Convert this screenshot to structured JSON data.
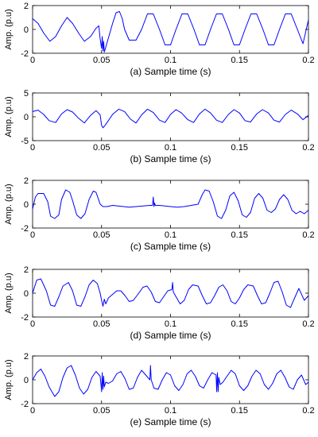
{
  "chart_data": [
    {
      "type": "line",
      "caption": "(a) Sample time (s)",
      "ylabel": "Amp. (p.u)",
      "xlim": [
        0,
        0.2
      ],
      "ylim": [
        -2,
        2
      ],
      "x_ticks": [
        "0",
        "0.05",
        "0.1",
        "0.15",
        "0.2"
      ],
      "y_ticks": [
        "2",
        "0",
        "-2"
      ],
      "series": [
        {
          "color": "#0000ff",
          "x": [
            0,
            0.004,
            0.008,
            0.0125,
            0.0167,
            0.021,
            0.025,
            0.029,
            0.0333,
            0.0375,
            0.042,
            0.046,
            0.048,
            0.049,
            0.05,
            0.0505,
            0.051,
            0.0515,
            0.052,
            0.053,
            0.054,
            0.056,
            0.058,
            0.0605,
            0.063,
            0.065,
            0.0667,
            0.07,
            0.075,
            0.079,
            0.0833,
            0.0875,
            0.092,
            0.096,
            0.1,
            0.104,
            0.1083,
            0.1125,
            0.117,
            0.121,
            0.125,
            0.129,
            0.1333,
            0.1375,
            0.142,
            0.146,
            0.15,
            0.154,
            0.1583,
            0.1625,
            0.167,
            0.171,
            0.175,
            0.179,
            0.1833,
            0.1875,
            0.192,
            0.196,
            0.2
          ],
          "y": [
            0.9,
            0.5,
            -0.3,
            -1.0,
            -0.6,
            0.3,
            1.0,
            0.5,
            -0.3,
            -1.0,
            -0.6,
            0.1,
            0.3,
            -0.8,
            -1.6,
            -0.6,
            -1.8,
            -1.0,
            -1.9,
            -1.5,
            -1.1,
            -0.3,
            0.5,
            1.4,
            1.5,
            0.9,
            0,
            -0.9,
            -0.9,
            0,
            1.3,
            1.3,
            0,
            -1.3,
            -1.3,
            0,
            1.3,
            1.3,
            0,
            -1.3,
            -1.3,
            0,
            1.3,
            1.3,
            0,
            -1.3,
            -1.3,
            0,
            1.3,
            1.3,
            0,
            -1.3,
            -1.3,
            0,
            1.3,
            1.3,
            0,
            -1.2,
            0.8
          ]
        }
      ]
    },
    {
      "type": "line",
      "caption": "(b) Sample time (s)",
      "ylabel": "Amp. (p.u)",
      "xlim": [
        0,
        0.2
      ],
      "ylim": [
        -5,
        5
      ],
      "x_ticks": [
        "0",
        "0.05",
        "0.1",
        "0.15",
        "0.2"
      ],
      "y_ticks": [
        "5",
        "0",
        "-5"
      ],
      "series": [
        {
          "color": "#0000ff",
          "x": [
            0,
            0.004,
            0.008,
            0.012,
            0.0167,
            0.021,
            0.025,
            0.029,
            0.0333,
            0.0375,
            0.042,
            0.046,
            0.049,
            0.05,
            0.051,
            0.052,
            0.054,
            0.058,
            0.0625,
            0.0667,
            0.071,
            0.075,
            0.079,
            0.0833,
            0.0875,
            0.092,
            0.096,
            0.1,
            0.104,
            0.108,
            0.1125,
            0.1167,
            0.121,
            0.125,
            0.129,
            0.1333,
            0.1375,
            0.142,
            0.146,
            0.15,
            0.154,
            0.158,
            0.1625,
            0.1667,
            0.171,
            0.175,
            0.179,
            0.1833,
            0.1875,
            0.192,
            0.196,
            0.2
          ],
          "y": [
            1.1,
            1.4,
            0.5,
            -0.8,
            -1.2,
            0.6,
            1.5,
            1.0,
            -0.3,
            -1.3,
            0.3,
            1.3,
            0.4,
            -1.8,
            -2.3,
            -2.0,
            -1.2,
            0.5,
            1.6,
            1.1,
            -0.5,
            -1.3,
            0.4,
            1.6,
            0.9,
            -0.7,
            -1.2,
            0.5,
            1.5,
            0.8,
            -0.6,
            -1.2,
            0.6,
            1.6,
            0.8,
            -0.7,
            -1.2,
            0.5,
            1.5,
            0.8,
            -0.8,
            -1.1,
            0.6,
            1.5,
            0.8,
            -0.7,
            -1.1,
            0.5,
            1.4,
            0.6,
            -0.6,
            0.3
          ]
        }
      ]
    },
    {
      "type": "line",
      "caption": "(c) Sample time (s)",
      "ylabel": "Amp. (p.u)",
      "xlim": [
        0,
        0.2
      ],
      "ylim": [
        -2,
        2
      ],
      "x_ticks": [
        "0",
        "0.05",
        "0.1",
        "0.15",
        "0.2"
      ],
      "y_ticks": [
        "2",
        "0",
        "-2"
      ],
      "series": [
        {
          "color": "#0000ff",
          "x": [
            0,
            0.002,
            0.004,
            0.008,
            0.011,
            0.013,
            0.016,
            0.019,
            0.021,
            0.024,
            0.027,
            0.029,
            0.032,
            0.035,
            0.038,
            0.041,
            0.044,
            0.046,
            0.049,
            0.051,
            0.054,
            0.058,
            0.062,
            0.066,
            0.07,
            0.075,
            0.08,
            0.085,
            0.087,
            0.0875,
            0.088,
            0.0885,
            0.089,
            0.092,
            0.096,
            0.1,
            0.105,
            0.11,
            0.115,
            0.12,
            0.123,
            0.125,
            0.128,
            0.131,
            0.134,
            0.137,
            0.14,
            0.143,
            0.146,
            0.149,
            0.152,
            0.155,
            0.158,
            0.161,
            0.164,
            0.167,
            0.17,
            0.173,
            0.176,
            0.179,
            0.182,
            0.185,
            0.188,
            0.191,
            0.194,
            0.197,
            0.2
          ],
          "y": [
            -0.4,
            0.6,
            0.9,
            0.9,
            0.2,
            -1.0,
            -1.2,
            -0.9,
            0.4,
            1.2,
            1.0,
            0.3,
            -0.9,
            -1.2,
            -0.8,
            0.4,
            1.1,
            1.0,
            0,
            -0.2,
            -0.2,
            -0.1,
            -0.15,
            -0.2,
            -0.25,
            -0.2,
            -0.15,
            -0.1,
            -0.1,
            0.6,
            -0.2,
            0.1,
            -0.1,
            -0.1,
            -0.15,
            -0.2,
            -0.25,
            -0.2,
            -0.1,
            0,
            0.8,
            1.2,
            1.1,
            0.2,
            -1.0,
            -1.2,
            -0.5,
            0.7,
            1.0,
            0.3,
            -0.9,
            -1.1,
            -0.7,
            0.5,
            0.9,
            0.5,
            -0.5,
            -0.7,
            -0.4,
            0.4,
            0.8,
            0.4,
            -0.5,
            -0.8,
            -0.6,
            -0.8,
            -0.5
          ]
        }
      ]
    },
    {
      "type": "line",
      "caption": "(d) Sample time (s)",
      "ylabel": "Amp. (p.u)",
      "xlim": [
        0,
        0.2
      ],
      "ylim": [
        -2,
        2
      ],
      "x_ticks": [
        "0",
        "0.05",
        "0.1",
        "0.15",
        "0.2"
      ],
      "y_ticks": [
        "2",
        "0",
        "-2"
      ],
      "series": [
        {
          "color": "#0000ff",
          "x": [
            0,
            0.003,
            0.006,
            0.01,
            0.013,
            0.016,
            0.019,
            0.022,
            0.026,
            0.029,
            0.032,
            0.035,
            0.038,
            0.041,
            0.044,
            0.047,
            0.049,
            0.05,
            0.051,
            0.052,
            0.053,
            0.055,
            0.058,
            0.061,
            0.064,
            0.067,
            0.07,
            0.073,
            0.077,
            0.08,
            0.083,
            0.086,
            0.089,
            0.092,
            0.095,
            0.098,
            0.101,
            0.1015,
            0.102,
            0.104,
            0.107,
            0.11,
            0.113,
            0.116,
            0.12,
            0.123,
            0.126,
            0.129,
            0.132,
            0.135,
            0.138,
            0.141,
            0.144,
            0.147,
            0.15,
            0.153,
            0.156,
            0.16,
            0.163,
            0.166,
            0.169,
            0.172,
            0.175,
            0.178,
            0.181,
            0.184,
            0.187,
            0.19,
            0.193,
            0.197,
            0.2
          ],
          "y": [
            0,
            1.1,
            1.2,
            0.2,
            -1.0,
            -1.1,
            -0.3,
            0.6,
            0.9,
            0.2,
            -1.0,
            -1.1,
            -0.3,
            0.7,
            1.1,
            0.8,
            0,
            -0.6,
            -1.1,
            -0.5,
            -0.9,
            -0.4,
            -0.1,
            0.2,
            0.2,
            -0.2,
            -0.7,
            -0.6,
            0,
            0.5,
            0.6,
            0.1,
            -0.7,
            -0.8,
            -0.3,
            0.2,
            0.3,
            0.9,
            0.1,
            -0.3,
            -0.9,
            -0.6,
            0.3,
            0.7,
            0.6,
            -0.2,
            -0.9,
            -0.8,
            -0.2,
            0.5,
            0.7,
            0.2,
            -0.7,
            -0.9,
            -0.4,
            0.3,
            0.7,
            0.6,
            -0.2,
            -0.9,
            -0.8,
            0,
            0.9,
            1.0,
            0.1,
            -1.0,
            -1.2,
            -0.4,
            0.4,
            -0.6,
            -0.2
          ]
        }
      ]
    },
    {
      "type": "line",
      "caption": "(e) Sample time (s)",
      "ylabel": "Amp. (p.u)",
      "xlim": [
        0,
        0.2
      ],
      "ylim": [
        -2,
        2
      ],
      "x_ticks": [
        "0",
        "0.05",
        "0.1",
        "0.15",
        "0.2"
      ],
      "y_ticks": [
        "2",
        "0",
        "-2"
      ],
      "series": [
        {
          "color": "#0000ff",
          "x": [
            0,
            0.003,
            0.006,
            0.009,
            0.012,
            0.016,
            0.019,
            0.022,
            0.025,
            0.028,
            0.031,
            0.034,
            0.037,
            0.04,
            0.043,
            0.046,
            0.049,
            0.05,
            0.0505,
            0.051,
            0.0515,
            0.052,
            0.053,
            0.055,
            0.058,
            0.061,
            0.064,
            0.067,
            0.07,
            0.073,
            0.076,
            0.079,
            0.082,
            0.085,
            0.0855,
            0.086,
            0.088,
            0.091,
            0.094,
            0.097,
            0.1,
            0.103,
            0.106,
            0.109,
            0.112,
            0.115,
            0.118,
            0.121,
            0.124,
            0.127,
            0.13,
            0.133,
            0.1335,
            0.134,
            0.1345,
            0.135,
            0.136,
            0.138,
            0.141,
            0.144,
            0.147,
            0.15,
            0.153,
            0.156,
            0.159,
            0.162,
            0.165,
            0.168,
            0.171,
            0.174,
            0.177,
            0.18,
            0.183,
            0.186,
            0.189,
            0.192,
            0.195,
            0.198,
            0.2
          ],
          "y": [
            0,
            0.6,
            0.9,
            0.3,
            -0.6,
            -1.4,
            -1.0,
            0.2,
            1.0,
            1.2,
            0.4,
            -0.7,
            -1.2,
            -0.8,
            0.2,
            0.7,
            0.3,
            -1.0,
            0.6,
            -0.8,
            0.3,
            -0.6,
            -0.2,
            -0.3,
            -0.1,
            0.5,
            0.7,
            0.1,
            -0.8,
            -0.7,
            0.2,
            0.8,
            0.4,
            0,
            1.2,
            0,
            -0.7,
            -0.8,
            0,
            0.6,
            0.4,
            -0.5,
            -0.9,
            -0.4,
            0.5,
            0.8,
            0.3,
            -0.5,
            -0.7,
            0,
            0.6,
            0.4,
            -1.0,
            0.6,
            -1.0,
            0.2,
            -0.4,
            -0.2,
            0.3,
            0.8,
            0.5,
            -0.5,
            -0.9,
            -0.5,
            0.3,
            0.8,
            0.5,
            -0.4,
            -0.8,
            -0.3,
            0.5,
            0.8,
            0.2,
            -0.6,
            -0.8,
            0,
            0.4,
            -0.4,
            -0.2
          ]
        }
      ]
    }
  ]
}
